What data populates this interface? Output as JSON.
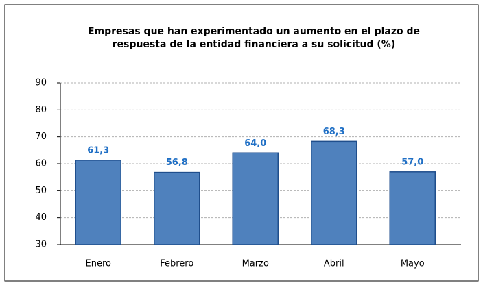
{
  "chart_data": {
    "type": "bar",
    "title": [
      "Empresas que han experimentado un aumento en el plazo de",
      "respuesta de la entidad financiera a su solicitud (%)"
    ],
    "categories": [
      "Enero",
      "Febrero",
      "Marzo",
      "Abril",
      "Mayo"
    ],
    "values": [
      61.3,
      56.8,
      64.0,
      68.3,
      57.0
    ],
    "value_labels": [
      "61,3",
      "56,8",
      "64,0",
      "68,3",
      "57,0"
    ],
    "color": "#4f81bd",
    "ylim": [
      30,
      90
    ],
    "yticks": [
      30,
      40,
      50,
      60,
      70,
      80,
      90
    ],
    "grid": true
  }
}
